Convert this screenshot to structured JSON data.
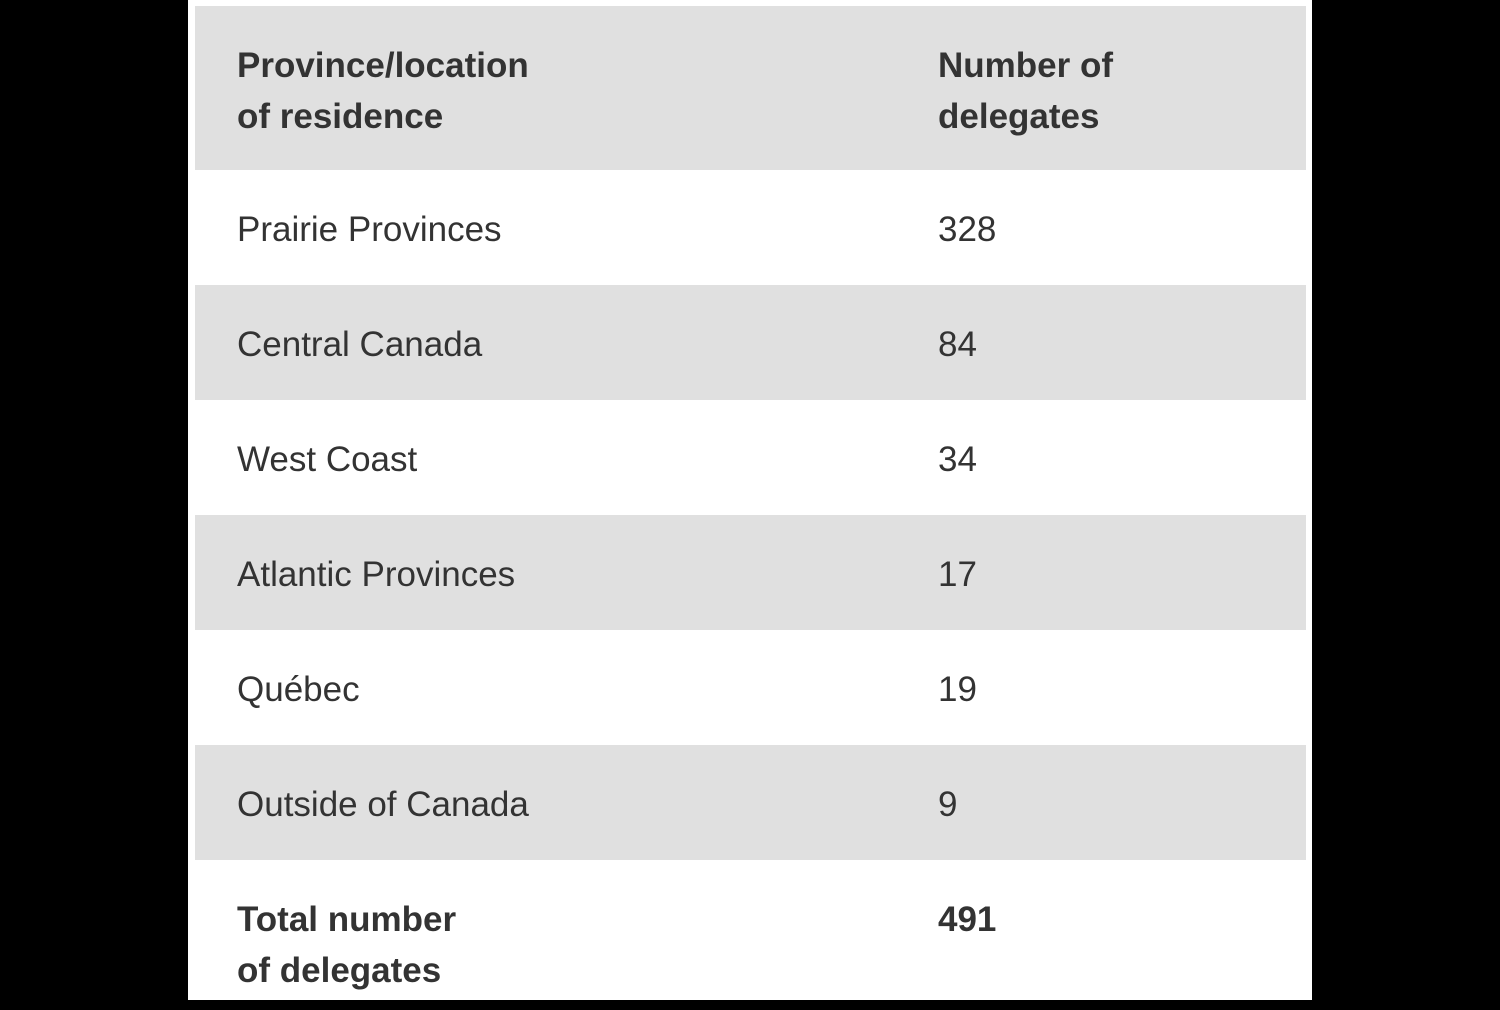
{
  "table": {
    "header": [
      "Province/location\nof residence",
      "Number of\ndelegates"
    ],
    "rows": [
      [
        "Prairie Provinces",
        328
      ],
      [
        "Central Canada",
        84
      ],
      [
        "West Coast",
        34
      ],
      [
        "Atlantic Provinces",
        17
      ],
      [
        "Québec",
        19
      ],
      [
        "Outside of Canada",
        9
      ]
    ],
    "footer": [
      "Total number\nof delegates",
      491
    ]
  }
}
